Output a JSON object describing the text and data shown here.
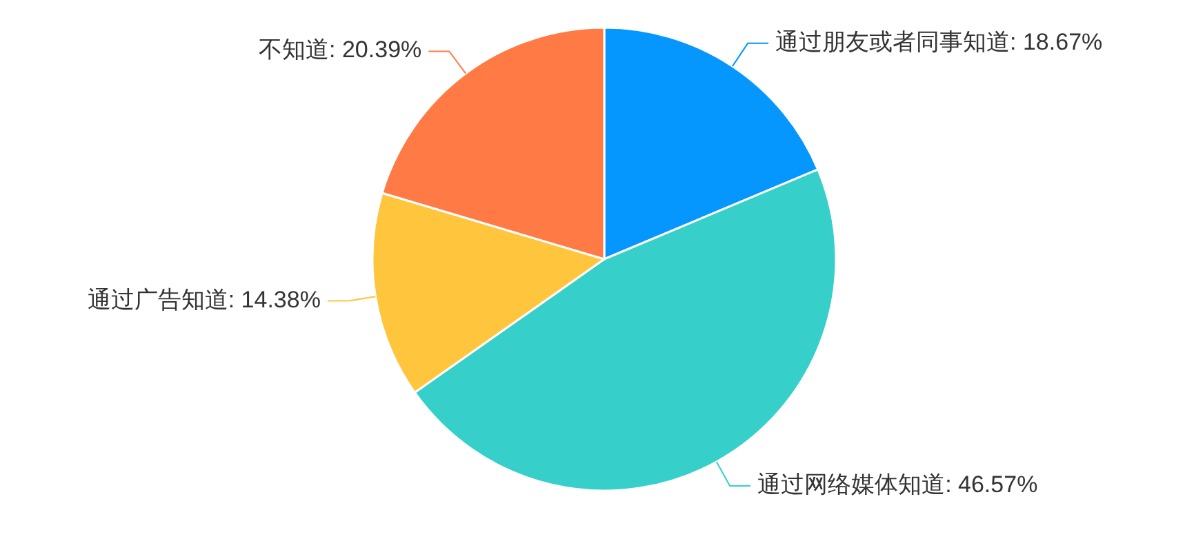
{
  "chart_data": {
    "type": "pie",
    "categories": [
      "通过朋友或者同事知道",
      "通过网络媒体知道",
      "通过广告知道",
      "不知道"
    ],
    "values": [
      18.67,
      46.57,
      14.38,
      20.39
    ],
    "value_labels": [
      "18.67%",
      "46.57%",
      "14.38%",
      "20.39%"
    ],
    "colors": [
      "#0596fe",
      "#36cfc9",
      "#ffc53d",
      "#ff7a45"
    ]
  }
}
